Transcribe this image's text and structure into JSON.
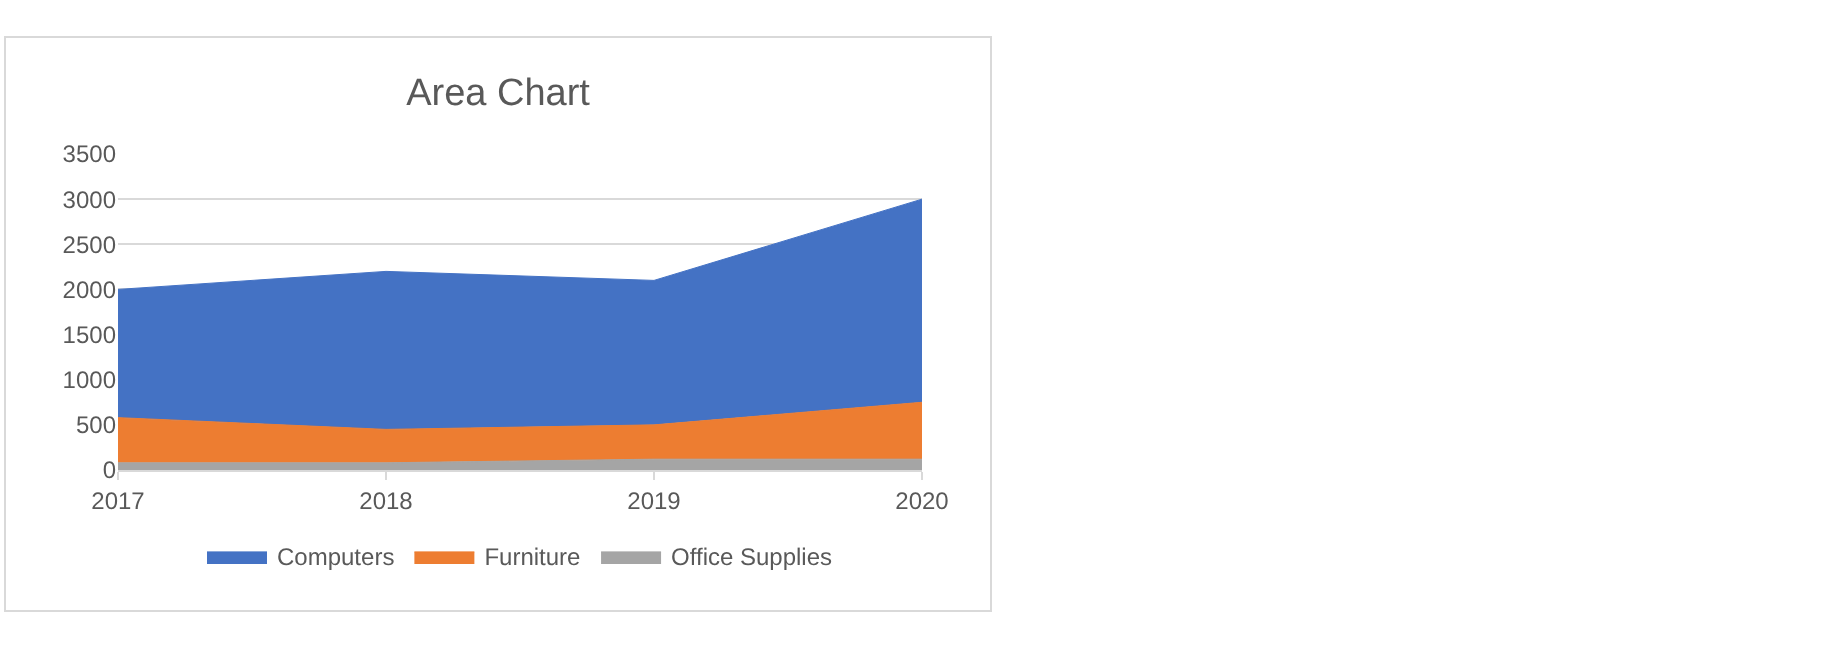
{
  "chart_data": {
    "type": "area",
    "title": "Area Chart",
    "stacked": true,
    "categories": [
      "2017",
      "2018",
      "2019",
      "2020"
    ],
    "series": [
      {
        "name": "Office Supplies",
        "color": "#a5a5a5",
        "values": [
          80,
          80,
          120,
          120
        ]
      },
      {
        "name": "Furniture",
        "color": "#ed7d31",
        "values": [
          500,
          370,
          380,
          630
        ]
      },
      {
        "name": "Computers",
        "color": "#4472c4",
        "values": [
          1420,
          1750,
          1600,
          2250
        ]
      }
    ],
    "ylim": [
      0,
      3500
    ],
    "yticks": [
      0,
      500,
      1000,
      1500,
      2000,
      2500,
      3000,
      3500
    ],
    "grid": "y",
    "legend": "bottom"
  }
}
